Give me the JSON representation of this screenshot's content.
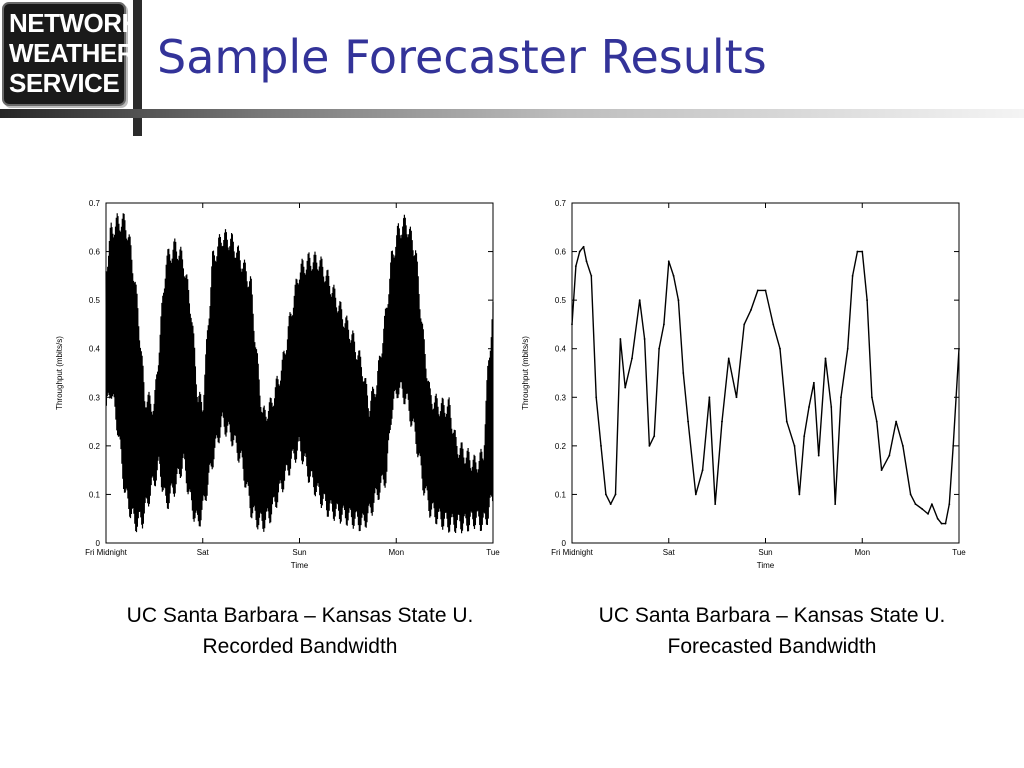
{
  "logo": {
    "line1": "NETWORK",
    "line2": "WEATHER",
    "line3": "SERVICE"
  },
  "slide": {
    "title": "Sample Forecaster Results"
  },
  "colors": {
    "title": "#333399",
    "logo_bg": "#1a1a1a",
    "plot_line": "#000000"
  },
  "captions": [
    {
      "line1": "UC Santa Barbara – Kansas State U.",
      "line2": "Recorded Bandwidth"
    },
    {
      "line1": "UC Santa Barbara – Kansas State U.",
      "line2": "Forecasted Bandwidth"
    }
  ],
  "chart_data": [
    {
      "type": "line",
      "style": "dense-oscillating",
      "xlabel": "Time",
      "ylabel": "Throughput (mbits/s)",
      "ylim": [
        0,
        0.7
      ],
      "yticks": [
        "0",
        "0.1",
        "0.2",
        "0.3",
        "0.4",
        "0.5",
        "0.6",
        "0.7"
      ],
      "xlim": [
        0,
        4
      ],
      "xticks": [
        {
          "x": 0,
          "label": "Fri Midnight"
        },
        {
          "x": 1,
          "label": "Sat"
        },
        {
          "x": 2,
          "label": "Sun"
        },
        {
          "x": 3,
          "label": "Mon"
        },
        {
          "x": 4,
          "label": "Tue"
        }
      ],
      "grid": false,
      "series": [
        {
          "upper_envelope": {
            "x": [
              0,
              0.05,
              0.12,
              0.2,
              0.26,
              0.33,
              0.4,
              0.5,
              0.62,
              0.72,
              0.8,
              0.88,
              0.95,
              1.0,
              1.1,
              1.2,
              1.3,
              1.4,
              1.5,
              1.55,
              1.62,
              1.7,
              1.82,
              1.92,
              2.0,
              2.1,
              2.2,
              2.3,
              2.42,
              2.55,
              2.65,
              2.72,
              2.8,
              2.9,
              2.95,
              3.02,
              3.1,
              3.2,
              3.28,
              3.35,
              3.45,
              3.55,
              3.62,
              3.72,
              3.82,
              3.9,
              3.95,
              4.0
            ],
            "y": [
              0.58,
              0.66,
              0.68,
              0.68,
              0.62,
              0.5,
              0.32,
              0.3,
              0.6,
              0.63,
              0.6,
              0.5,
              0.32,
              0.3,
              0.6,
              0.65,
              0.64,
              0.6,
              0.55,
              0.42,
              0.28,
              0.3,
              0.38,
              0.5,
              0.58,
              0.6,
              0.6,
              0.56,
              0.5,
              0.44,
              0.38,
              0.3,
              0.35,
              0.5,
              0.6,
              0.66,
              0.68,
              0.62,
              0.44,
              0.32,
              0.3,
              0.3,
              0.22,
              0.2,
              0.18,
              0.2,
              0.38,
              0.5
            ]
          },
          "lower_envelope": {
            "x": [
              0,
              0.05,
              0.12,
              0.2,
              0.3,
              0.38,
              0.45,
              0.55,
              0.62,
              0.72,
              0.8,
              0.88,
              0.95,
              1.0,
              1.1,
              1.2,
              1.3,
              1.4,
              1.5,
              1.55,
              1.62,
              1.7,
              1.82,
              1.92,
              2.0,
              2.1,
              2.2,
              2.3,
              2.42,
              2.55,
              2.65,
              2.72,
              2.8,
              2.9,
              2.95,
              3.02,
              3.1,
              3.2,
              3.28,
              3.35,
              3.45,
              3.55,
              3.62,
              3.72,
              3.82,
              3.9,
              3.95,
              4.0
            ],
            "y": [
              0.25,
              0.3,
              0.22,
              0.08,
              0.02,
              0.03,
              0.08,
              0.14,
              0.06,
              0.1,
              0.15,
              0.06,
              0.02,
              0.05,
              0.15,
              0.23,
              0.2,
              0.15,
              0.05,
              0.03,
              0.02,
              0.04,
              0.1,
              0.15,
              0.18,
              0.12,
              0.08,
              0.05,
              0.04,
              0.03,
              0.02,
              0.04,
              0.08,
              0.12,
              0.25,
              0.3,
              0.28,
              0.2,
              0.1,
              0.05,
              0.03,
              0.02,
              0.02,
              0.02,
              0.03,
              0.02,
              0.04,
              0.08
            ]
          }
        }
      ]
    },
    {
      "type": "line",
      "style": "single-trace",
      "xlabel": "Time",
      "ylabel": "Throughput (mbits/s)",
      "ylim": [
        0,
        0.7
      ],
      "yticks": [
        "0",
        "0.1",
        "0.2",
        "0.3",
        "0.4",
        "0.5",
        "0.6",
        "0.7"
      ],
      "xlim": [
        0,
        4
      ],
      "xticks": [
        {
          "x": 0,
          "label": "Fri Midnight"
        },
        {
          "x": 1,
          "label": "Sat"
        },
        {
          "x": 2,
          "label": "Sun"
        },
        {
          "x": 3,
          "label": "Mon"
        },
        {
          "x": 4,
          "label": "Tue"
        }
      ],
      "grid": false,
      "series": [
        {
          "x": [
            0,
            0.04,
            0.08,
            0.12,
            0.15,
            0.2,
            0.25,
            0.3,
            0.35,
            0.4,
            0.45,
            0.5,
            0.55,
            0.62,
            0.7,
            0.75,
            0.8,
            0.85,
            0.9,
            0.95,
            1.0,
            1.05,
            1.1,
            1.15,
            1.2,
            1.28,
            1.35,
            1.42,
            1.48,
            1.55,
            1.62,
            1.7,
            1.78,
            1.85,
            1.92,
            2.0,
            2.08,
            2.15,
            2.22,
            2.3,
            2.35,
            2.4,
            2.45,
            2.5,
            2.55,
            2.62,
            2.68,
            2.72,
            2.78,
            2.85,
            2.9,
            2.95,
            3.0,
            3.05,
            3.1,
            3.15,
            3.2,
            3.28,
            3.35,
            3.42,
            3.5,
            3.55,
            3.62,
            3.68,
            3.72,
            3.78,
            3.82,
            3.86,
            3.9,
            3.94,
            4.0
          ],
          "y": [
            0.45,
            0.57,
            0.6,
            0.61,
            0.58,
            0.55,
            0.3,
            0.2,
            0.1,
            0.08,
            0.1,
            0.42,
            0.32,
            0.38,
            0.5,
            0.42,
            0.2,
            0.22,
            0.4,
            0.45,
            0.58,
            0.55,
            0.5,
            0.35,
            0.25,
            0.1,
            0.15,
            0.3,
            0.08,
            0.25,
            0.38,
            0.3,
            0.45,
            0.48,
            0.52,
            0.52,
            0.45,
            0.4,
            0.25,
            0.2,
            0.1,
            0.22,
            0.28,
            0.33,
            0.18,
            0.38,
            0.28,
            0.08,
            0.3,
            0.4,
            0.55,
            0.6,
            0.6,
            0.5,
            0.3,
            0.25,
            0.15,
            0.18,
            0.25,
            0.2,
            0.1,
            0.08,
            0.07,
            0.06,
            0.08,
            0.05,
            0.04,
            0.04,
            0.08,
            0.2,
            0.4
          ]
        }
      ]
    }
  ]
}
